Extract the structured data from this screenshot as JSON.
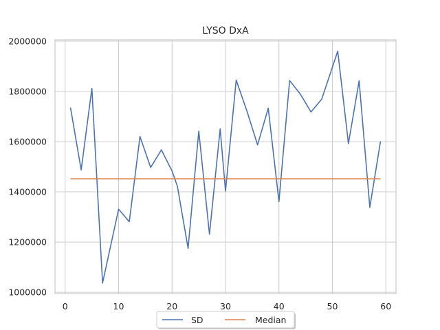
{
  "chart_data": {
    "type": "line",
    "title": "LYSO DxA",
    "xlabel": "",
    "ylabel": "",
    "xlim": [
      -1.9,
      61.9
    ],
    "ylim": [
      995000,
      2005000
    ],
    "x_ticks": [
      0,
      10,
      20,
      30,
      40,
      50,
      60
    ],
    "y_ticks": [
      1000000,
      1200000,
      1400000,
      1600000,
      1800000,
      2000000
    ],
    "x_tick_labels": [
      "0",
      "10",
      "20",
      "30",
      "40",
      "50",
      "60"
    ],
    "y_tick_labels": [
      "1000000",
      "1200000",
      "1400000",
      "1600000",
      "1800000",
      "2000000"
    ],
    "grid": true,
    "legend_position": "bottom-center",
    "series": [
      {
        "name": "SD",
        "color": "#4c72b0",
        "x": [
          1,
          3,
          5,
          7,
          10,
          12,
          14,
          16,
          18,
          20,
          21,
          23,
          25,
          27,
          29,
          30,
          32,
          34,
          36,
          38,
          40,
          42,
          44,
          46,
          48,
          51,
          53,
          55,
          57,
          59
        ],
        "y": [
          1735000,
          1487000,
          1812000,
          1037000,
          1331000,
          1281000,
          1620000,
          1497000,
          1567000,
          1483000,
          1422000,
          1175000,
          1642000,
          1231000,
          1651000,
          1403000,
          1845000,
          1722000,
          1587000,
          1733000,
          1361000,
          1843000,
          1789000,
          1718000,
          1769000,
          1960000,
          1592000,
          1842000,
          1338000,
          1601000
        ]
      },
      {
        "name": "Median",
        "color": "#dd8452",
        "x": [
          1,
          59
        ],
        "y": [
          1452000,
          1452000
        ]
      }
    ]
  }
}
